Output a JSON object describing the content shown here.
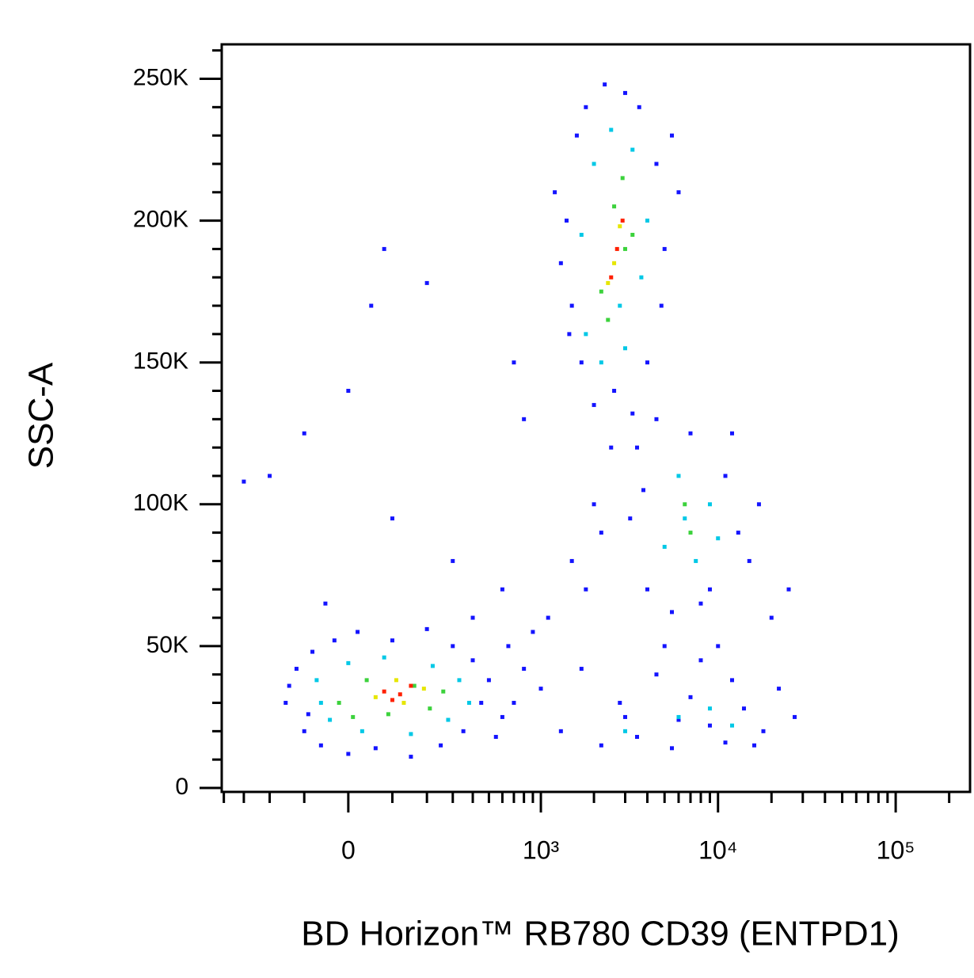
{
  "chart_data": {
    "type": "scatter",
    "x_label": "BD Horizon™ RB780 CD39 (ENTPD1)",
    "y_label": "SSC-A",
    "xscale": "biexponential",
    "xlim": [
      -412,
      262144
    ],
    "ylim": [
      -1400,
      262144
    ],
    "xticks": [
      {
        "value": 0,
        "label": "0"
      },
      {
        "value": 1000,
        "label": "10³"
      },
      {
        "value": 10000,
        "label": "10⁴"
      },
      {
        "value": 100000,
        "label": "10⁵"
      }
    ],
    "xminorticks": [
      -400,
      -300,
      -200,
      -100,
      100,
      200,
      300,
      400,
      500,
      600,
      700,
      800,
      900,
      2000,
      3000,
      4000,
      5000,
      6000,
      7000,
      8000,
      9000,
      20000,
      30000,
      40000,
      50000,
      60000,
      70000,
      80000,
      90000,
      200000
    ],
    "yticks": [
      {
        "value": 0,
        "label": "0"
      },
      {
        "value": 50000,
        "label": "50K"
      },
      {
        "value": 100000,
        "label": "100K"
      },
      {
        "value": 150000,
        "label": "150K"
      },
      {
        "value": 200000,
        "label": "200K"
      },
      {
        "value": 250000,
        "label": "250K"
      }
    ],
    "yminorticks": [
      10000,
      20000,
      30000,
      40000,
      60000,
      70000,
      80000,
      90000,
      110000,
      120000,
      130000,
      140000,
      160000,
      170000,
      180000,
      190000,
      210000,
      220000,
      230000,
      240000,
      260000
    ],
    "series": [
      {
        "color": "#1414ff",
        "x": [
          -150,
          -120,
          -100,
          -80,
          -60,
          -30,
          0,
          20,
          60,
          100,
          150,
          200,
          250,
          300,
          350,
          400,
          450,
          500,
          600,
          550,
          -140,
          -90,
          700,
          800,
          650,
          1400,
          1500,
          1600,
          1700,
          1800,
          2000,
          2300,
          2600,
          3000,
          3300,
          3600,
          4000,
          4500,
          5000,
          5500,
          1300,
          1450,
          4800,
          6000,
          1200,
          3200,
          3500,
          4000,
          4500,
          5500,
          7000,
          9000,
          11000,
          13000,
          15000,
          17000,
          8000,
          3800,
          12000,
          1000,
          1300,
          1700,
          2200,
          2800,
          3500,
          4500,
          5500,
          7000,
          9000,
          11000,
          14000,
          18000,
          22000,
          27000,
          8000,
          3000,
          6000,
          12000,
          16000,
          1100,
          1500,
          2000,
          2500,
          1800,
          2200,
          900,
          600,
          300,
          100,
          -200,
          -100,
          0,
          50,
          80,
          200,
          -300,
          400,
          -50,
          20000,
          25000,
          700,
          800,
          5000,
          10000
        ],
        "values": [
          30000,
          42000,
          20000,
          48000,
          15000,
          52000,
          12000,
          55000,
          14000,
          52000,
          11000,
          56000,
          15000,
          50000,
          20000,
          45000,
          30000,
          38000,
          25000,
          18000,
          36000,
          26000,
          30000,
          42000,
          50000,
          200000,
          170000,
          230000,
          150000,
          240000,
          135000,
          248000,
          140000,
          245000,
          132000,
          240000,
          150000,
          220000,
          190000,
          230000,
          185000,
          160000,
          170000,
          210000,
          210000,
          95000,
          120000,
          70000,
          130000,
          62000,
          125000,
          70000,
          110000,
          90000,
          80000,
          100000,
          65000,
          105000,
          125000,
          35000,
          20000,
          42000,
          15000,
          30000,
          18000,
          40000,
          14000,
          32000,
          22000,
          16000,
          28000,
          20000,
          35000,
          25000,
          45000,
          25000,
          24000,
          38000,
          15000,
          60000,
          80000,
          100000,
          120000,
          70000,
          90000,
          55000,
          70000,
          80000,
          95000,
          110000,
          125000,
          140000,
          170000,
          190000,
          178000,
          108000,
          60000,
          65000,
          60000,
          70000,
          150000,
          130000,
          50000,
          50000
        ]
      },
      {
        "color": "#00c8e6",
        "x": [
          -70,
          -40,
          0,
          30,
          80,
          150,
          220,
          280,
          330,
          -60,
          380,
          1800,
          2000,
          2200,
          2500,
          3000,
          3300,
          3700,
          1700,
          4000,
          2800,
          5000,
          6000,
          7500,
          9000,
          6500,
          10000,
          6000,
          9000,
          12000,
          3000
        ],
        "values": [
          38000,
          24000,
          44000,
          20000,
          46000,
          19000,
          43000,
          24000,
          38000,
          30000,
          30000,
          160000,
          220000,
          150000,
          232000,
          155000,
          225000,
          180000,
          195000,
          200000,
          170000,
          85000,
          110000,
          80000,
          100000,
          95000,
          88000,
          25000,
          28000,
          22000,
          20000
        ]
      },
      {
        "color": "#3cd23c",
        "x": [
          -20,
          40,
          90,
          160,
          210,
          260,
          10,
          2200,
          2600,
          3000,
          2400,
          2900,
          3300,
          6500,
          7000
        ],
        "values": [
          30000,
          38000,
          26000,
          36000,
          28000,
          34000,
          25000,
          175000,
          205000,
          190000,
          165000,
          215000,
          195000,
          100000,
          90000
        ]
      },
      {
        "color": "#e6e600",
        "x": [
          60,
          130,
          190,
          110,
          2600,
          2800,
          2400
        ],
        "values": [
          32000,
          30000,
          35000,
          38000,
          185000,
          198000,
          178000
        ]
      },
      {
        "color": "#ff2000",
        "x": [
          80,
          120,
          150,
          100,
          2700,
          2500,
          2900
        ],
        "values": [
          34000,
          33000,
          36000,
          31000,
          190000,
          180000,
          200000
        ]
      }
    ]
  }
}
